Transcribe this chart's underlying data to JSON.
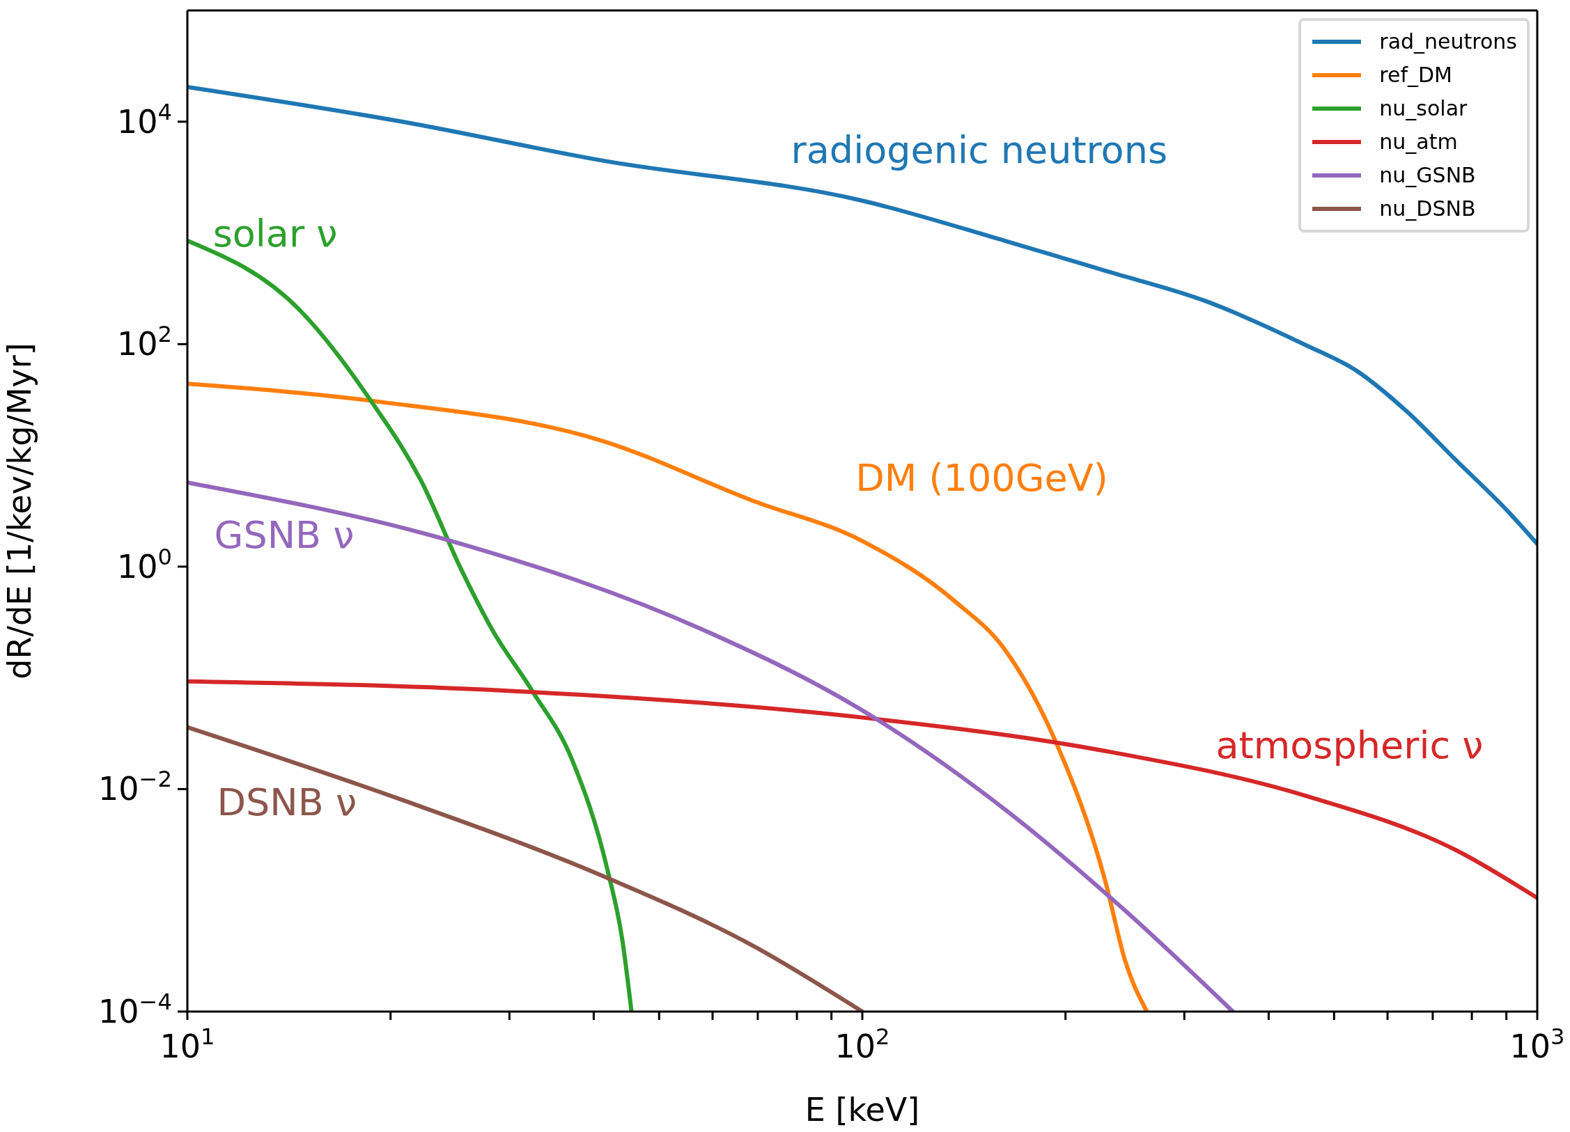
{
  "chart_data": {
    "type": "line",
    "xlabel": "E [keV]",
    "ylabel": "dR/dE [1/kev/kg/Myr]",
    "log": "xy",
    "legend": "top right",
    "grid": false,
    "line_style": "solid",
    "marker": "none",
    "xlim": [
      10,
      1000
    ],
    "ylim": [
      0.0001,
      100000
    ],
    "xticks": [
      {
        "value": 10,
        "label": "10$^{1}$"
      },
      {
        "value": 20,
        "label": null
      },
      {
        "value": 30,
        "label": null
      },
      {
        "value": 40,
        "label": null
      },
      {
        "value": 50,
        "label": null
      },
      {
        "value": 60,
        "label": null
      },
      {
        "value": 70,
        "label": null
      },
      {
        "value": 80,
        "label": null
      },
      {
        "value": 90,
        "label": null
      },
      {
        "value": 100,
        "label": "10$^{2}$"
      },
      {
        "value": 200,
        "label": null
      },
      {
        "value": 300,
        "label": null
      },
      {
        "value": 400,
        "label": null
      },
      {
        "value": 500,
        "label": null
      },
      {
        "value": 600,
        "label": null
      },
      {
        "value": 700,
        "label": null
      },
      {
        "value": 800,
        "label": null
      },
      {
        "value": 900,
        "label": null
      },
      {
        "value": 1000,
        "label": "10$^{3}$"
      }
    ],
    "yticks": [
      {
        "value": 0.0001,
        "label": "10$^{−4}$"
      },
      {
        "value": 0.01,
        "label": "10$^{−2}$"
      },
      {
        "value": 1,
        "label": "10$^{0}$"
      },
      {
        "value": 100,
        "label": "10$^{2}$"
      },
      {
        "value": 10000,
        "label": "10$^{4}$"
      }
    ],
    "series": [
      {
        "name": "rad_neutrons",
        "color": "#1f77b4",
        "x": [
          10,
          20.8,
          41.2,
          100,
          162.6,
          229,
          322,
          454,
          539,
          640,
          760,
          902,
          1000
        ],
        "values": [
          20500,
          10000,
          4470,
          1950,
          850,
          457,
          245,
          98,
          58,
          25,
          8.9,
          3.2,
          1.6
        ]
      },
      {
        "name": "ref_DM",
        "color": "#ff7f0e",
        "x": [
          10,
          18.7,
          41.2,
          68.9,
          100,
          137,
          163,
          193,
          229,
          245,
          264
        ],
        "values": [
          44,
          31,
          13.5,
          3.9,
          1.7,
          0.49,
          0.176,
          0.0275,
          0.0015,
          0.00029,
          0.0001
        ]
      },
      {
        "name": "nu_solar",
        "color": "#2ca02c",
        "x": [
          10,
          14.7,
          18.7,
          22.2,
          25.5,
          28.3,
          32.4,
          37.2,
          41.9,
          44.1,
          45.5
        ],
        "values": [
          850,
          200,
          31,
          5.9,
          0.92,
          0.27,
          0.077,
          0.018,
          0.0019,
          0.00044,
          0.0001
        ]
      },
      {
        "name": "nu_atm",
        "color": "#d62728",
        "x": [
          10,
          29.2,
          100,
          229,
          454,
          760,
          1000
        ],
        "values": [
          0.093,
          0.077,
          0.044,
          0.022,
          0.0087,
          0.0028,
          0.00105
        ]
      },
      {
        "name": "nu_GSNB",
        "color": "#9467bd",
        "x": [
          10,
          24.6,
          58.1,
          100,
          163,
          245,
          354
        ],
        "values": [
          5.7,
          1.7,
          0.27,
          0.051,
          0.0065,
          0.00081,
          0.0001
        ]
      },
      {
        "name": "nu_DSNB",
        "color": "#8c564b",
        "x": [
          10,
          20.8,
          41.2,
          68.9,
          100
        ],
        "values": [
          0.036,
          0.008,
          0.00166,
          0.00039,
          0.0001
        ]
      }
    ],
    "annotations": [
      "radiogenic neutrons",
      "DM (100GeV)",
      "solar ν",
      "atmospheric ν",
      "GSNB ν",
      "DSNB ν"
    ]
  }
}
